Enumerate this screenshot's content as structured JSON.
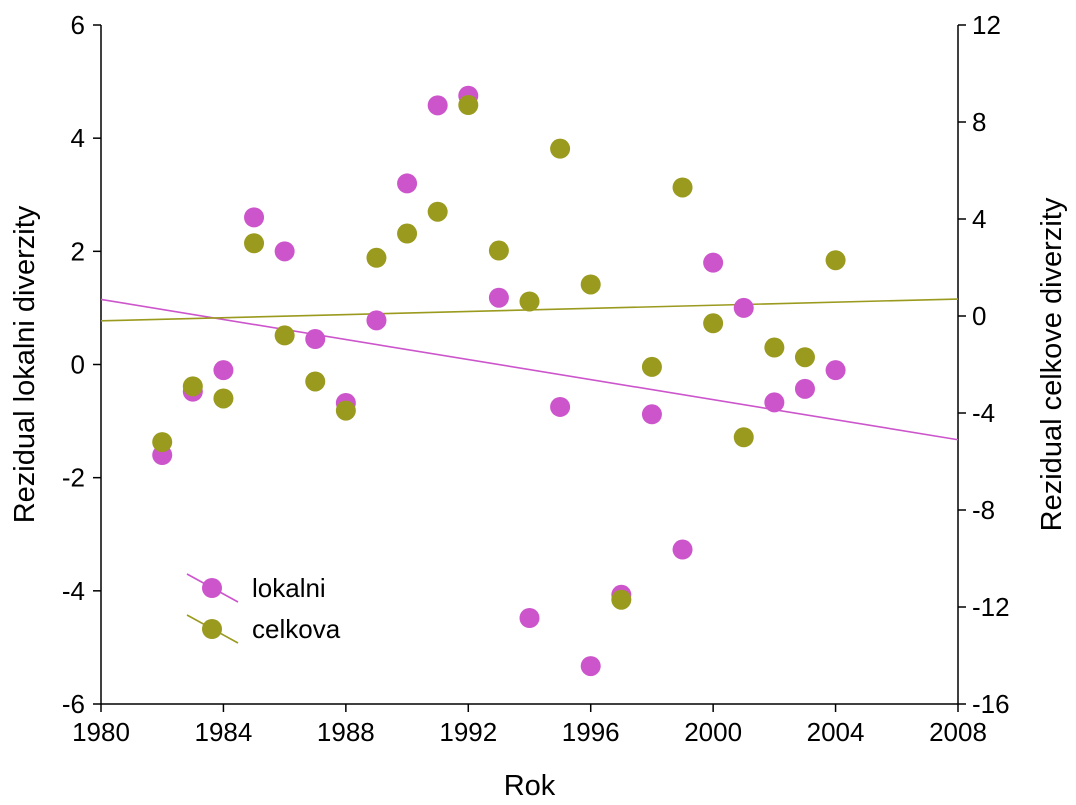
{
  "chart_data": {
    "type": "scatter",
    "title": "",
    "xlabel": "Rok",
    "ylabel_left": "Rezidual lokalni diverzity",
    "ylabel_right": "Rezidual celkove diverzity",
    "xlim": [
      1980,
      2008
    ],
    "ylim_left": [
      -6,
      6
    ],
    "ylim_right": [
      -16,
      12
    ],
    "x_ticks": [
      "1980",
      "1984",
      "1988",
      "1992",
      "1996",
      "2000",
      "2004",
      "2008"
    ],
    "y_left_ticks": [
      "6",
      "4",
      "2",
      "0",
      "-2",
      "-4",
      "-6"
    ],
    "y_right_ticks": [
      "12",
      "8",
      "4",
      "0",
      "-4",
      "-8",
      "-12",
      "-16"
    ],
    "grid": false,
    "legend_position": "bottom-left",
    "series": [
      {
        "name": "lokalni",
        "axis": "left",
        "color": "#cc55cc",
        "x": [
          1982,
          1983,
          1984,
          1985,
          1986,
          1987,
          1988,
          1989,
          1990,
          1991,
          1992,
          1993,
          1994,
          1995,
          1996,
          1997,
          1998,
          1999,
          2000,
          2001,
          2002,
          2003,
          2004
        ],
        "y": [
          -1.6,
          -0.48,
          -0.1,
          2.6,
          2.0,
          0.45,
          -0.68,
          0.78,
          3.2,
          4.58,
          4.75,
          1.18,
          -4.48,
          -0.75,
          -5.33,
          -4.07,
          -0.88,
          -3.27,
          1.8,
          1.0,
          -0.67,
          -0.43,
          -0.1
        ],
        "fit": {
          "x": [
            1980,
            2008
          ],
          "y": [
            1.15,
            -1.33
          ]
        }
      },
      {
        "name": "celkova",
        "axis": "right",
        "color": "#9a9a1e",
        "x": [
          1982,
          1983,
          1984,
          1985,
          1986,
          1987,
          1988,
          1989,
          1990,
          1991,
          1992,
          1993,
          1994,
          1995,
          1996,
          1997,
          1998,
          1999,
          2000,
          2001,
          2002,
          2003,
          2004
        ],
        "y": [
          -5.2,
          -2.9,
          -3.4,
          3.0,
          -0.8,
          -2.7,
          -3.9,
          2.4,
          3.4,
          4.3,
          8.7,
          2.7,
          0.6,
          6.9,
          1.3,
          -11.7,
          -2.1,
          5.3,
          -0.3,
          -5.0,
          -1.3,
          -1.7,
          2.3
        ],
        "fit": {
          "x": [
            1980,
            2008
          ],
          "y": [
            -0.2,
            0.7
          ]
        }
      }
    ]
  }
}
